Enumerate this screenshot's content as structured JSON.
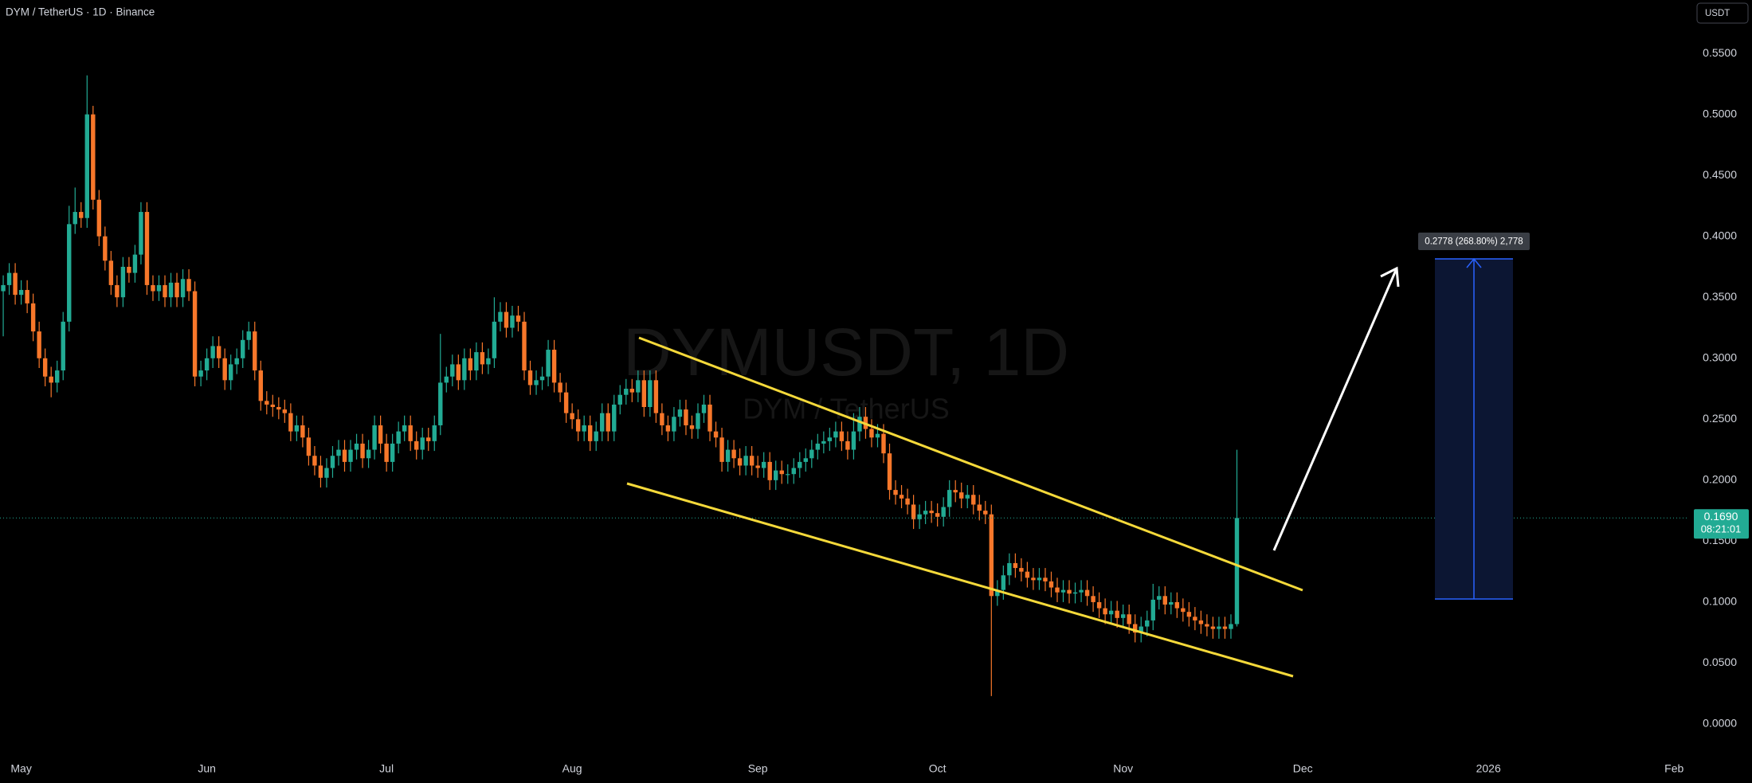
{
  "chart_data": {
    "type": "candlestick",
    "title": "DYM / TetherUS · 1D · Binance",
    "watermark": "DYMUSDT, 1D",
    "watermark_subtitle": "DYM / TetherUS",
    "currency": "USDT",
    "up_color": "#22ab94",
    "down_color": "#f7772a",
    "grid": false,
    "open": [
      0.355,
      0.36,
      0.37,
      0.352,
      0.356,
      0.345,
      0.322,
      0.3,
      0.285,
      0.28,
      0.29,
      0.33,
      0.41,
      0.42,
      0.415,
      0.5,
      0.43,
      0.4,
      0.38,
      0.36,
      0.35,
      0.375,
      0.37,
      0.385,
      0.42,
      0.36,
      0.355,
      0.36,
      0.35,
      0.362,
      0.35,
      0.365,
      0.355,
      0.285,
      0.29,
      0.3,
      0.31,
      0.3,
      0.282,
      0.295,
      0.3,
      0.315,
      0.322,
      0.29,
      0.265,
      0.262,
      0.26,
      0.258,
      0.255,
      0.24,
      0.245,
      0.235,
      0.22,
      0.212,
      0.202,
      0.21,
      0.22,
      0.225,
      0.215,
      0.225,
      0.23,
      0.218,
      0.225,
      0.245,
      0.23,
      0.215,
      0.23,
      0.24,
      0.245,
      0.232,
      0.225,
      0.235,
      0.232,
      0.245,
      0.28,
      0.285,
      0.295,
      0.282,
      0.3,
      0.29,
      0.305,
      0.295,
      0.3,
      0.33,
      0.338,
      0.325,
      0.335,
      0.33,
      0.29,
      0.278,
      0.282,
      0.285,
      0.307,
      0.28,
      0.272,
      0.255,
      0.25,
      0.24,
      0.245,
      0.232,
      0.24,
      0.255,
      0.24,
      0.262,
      0.27,
      0.275,
      0.272,
      0.282,
      0.26,
      0.282,
      0.255,
      0.245,
      0.24,
      0.252,
      0.258,
      0.245,
      0.242,
      0.255,
      0.262,
      0.24,
      0.235,
      0.215,
      0.225,
      0.218,
      0.212,
      0.22,
      0.212,
      0.21,
      0.215,
      0.2,
      0.208,
      0.205,
      0.205,
      0.21,
      0.215,
      0.218,
      0.225,
      0.23,
      0.232,
      0.235,
      0.24,
      0.232,
      0.225,
      0.24,
      0.252,
      0.242,
      0.235,
      0.238,
      0.222,
      0.192,
      0.188,
      0.185,
      0.18,
      0.168,
      0.172,
      0.175,
      0.173,
      0.17,
      0.178,
      0.192,
      0.19,
      0.185,
      0.188,
      0.18,
      0.175,
      0.172,
      0.105,
      0.11,
      0.122,
      0.132,
      0.128,
      0.125,
      0.12,
      0.118,
      0.12,
      0.117,
      0.112,
      0.108,
      0.11,
      0.107,
      0.108,
      0.11,
      0.105,
      0.1,
      0.095,
      0.09,
      0.093,
      0.087,
      0.09,
      0.082,
      0.075,
      0.08,
      0.085,
      0.102,
      0.105,
      0.098,
      0.1,
      0.095,
      0.092,
      0.088,
      0.085,
      0.082,
      0.08,
      0.078,
      0.08,
      0.078,
      0.082
    ],
    "high": [
      0.368,
      0.378,
      0.378,
      0.364,
      0.364,
      0.353,
      0.33,
      0.308,
      0.293,
      0.298,
      0.338,
      0.425,
      0.44,
      0.428,
      0.532,
      0.507,
      0.438,
      0.408,
      0.388,
      0.368,
      0.383,
      0.383,
      0.393,
      0.428,
      0.428,
      0.368,
      0.368,
      0.368,
      0.37,
      0.37,
      0.373,
      0.373,
      0.363,
      0.298,
      0.308,
      0.318,
      0.318,
      0.308,
      0.303,
      0.308,
      0.323,
      0.33,
      0.33,
      0.298,
      0.273,
      0.27,
      0.268,
      0.266,
      0.263,
      0.253,
      0.253,
      0.243,
      0.228,
      0.22,
      0.218,
      0.228,
      0.233,
      0.233,
      0.233,
      0.238,
      0.238,
      0.233,
      0.253,
      0.253,
      0.238,
      0.238,
      0.248,
      0.253,
      0.253,
      0.24,
      0.243,
      0.243,
      0.253,
      0.32,
      0.293,
      0.303,
      0.303,
      0.308,
      0.308,
      0.313,
      0.313,
      0.308,
      0.35,
      0.346,
      0.346,
      0.343,
      0.343,
      0.338,
      0.298,
      0.29,
      0.293,
      0.315,
      0.315,
      0.288,
      0.28,
      0.263,
      0.258,
      0.253,
      0.253,
      0.248,
      0.263,
      0.263,
      0.27,
      0.278,
      0.283,
      0.283,
      0.29,
      0.29,
      0.29,
      0.29,
      0.263,
      0.253,
      0.26,
      0.266,
      0.266,
      0.253,
      0.263,
      0.27,
      0.27,
      0.248,
      0.243,
      0.233,
      0.233,
      0.226,
      0.228,
      0.228,
      0.22,
      0.223,
      0.223,
      0.216,
      0.216,
      0.213,
      0.218,
      0.223,
      0.226,
      0.233,
      0.238,
      0.24,
      0.243,
      0.248,
      0.248,
      0.24,
      0.255,
      0.26,
      0.26,
      0.25,
      0.246,
      0.246,
      0.23,
      0.2,
      0.196,
      0.193,
      0.188,
      0.18,
      0.183,
      0.183,
      0.181,
      0.186,
      0.2,
      0.2,
      0.198,
      0.196,
      0.196,
      0.188,
      0.183,
      0.18,
      0.118,
      0.13,
      0.14,
      0.14,
      0.136,
      0.133,
      0.128,
      0.128,
      0.128,
      0.125,
      0.12,
      0.118,
      0.118,
      0.116,
      0.118,
      0.118,
      0.113,
      0.108,
      0.103,
      0.101,
      0.101,
      0.098,
      0.098,
      0.09,
      0.088,
      0.093,
      0.115,
      0.113,
      0.113,
      0.108,
      0.108,
      0.103,
      0.1,
      0.096,
      0.093,
      0.09,
      0.088,
      0.088,
      0.088,
      0.09,
      0.225
    ],
    "low": [
      0.318,
      0.352,
      0.344,
      0.344,
      0.337,
      0.314,
      0.292,
      0.277,
      0.268,
      0.272,
      0.282,
      0.322,
      0.402,
      0.407,
      0.407,
      0.422,
      0.392,
      0.372,
      0.352,
      0.342,
      0.342,
      0.362,
      0.362,
      0.377,
      0.352,
      0.347,
      0.347,
      0.342,
      0.342,
      0.342,
      0.342,
      0.347,
      0.277,
      0.277,
      0.282,
      0.292,
      0.292,
      0.274,
      0.274,
      0.287,
      0.292,
      0.307,
      0.282,
      0.257,
      0.254,
      0.252,
      0.25,
      0.247,
      0.232,
      0.232,
      0.227,
      0.212,
      0.204,
      0.194,
      0.194,
      0.202,
      0.212,
      0.207,
      0.207,
      0.217,
      0.21,
      0.21,
      0.217,
      0.222,
      0.207,
      0.207,
      0.222,
      0.232,
      0.224,
      0.217,
      0.217,
      0.224,
      0.224,
      0.237,
      0.272,
      0.277,
      0.274,
      0.274,
      0.282,
      0.282,
      0.287,
      0.287,
      0.292,
      0.322,
      0.317,
      0.317,
      0.322,
      0.282,
      0.27,
      0.27,
      0.274,
      0.277,
      0.272,
      0.264,
      0.247,
      0.242,
      0.232,
      0.232,
      0.224,
      0.224,
      0.232,
      0.232,
      0.232,
      0.254,
      0.262,
      0.264,
      0.264,
      0.252,
      0.252,
      0.247,
      0.237,
      0.232,
      0.232,
      0.244,
      0.237,
      0.234,
      0.234,
      0.247,
      0.232,
      0.227,
      0.207,
      0.207,
      0.21,
      0.204,
      0.204,
      0.204,
      0.202,
      0.202,
      0.192,
      0.192,
      0.197,
      0.197,
      0.197,
      0.202,
      0.207,
      0.21,
      0.217,
      0.222,
      0.224,
      0.227,
      0.224,
      0.217,
      0.217,
      0.232,
      0.234,
      0.227,
      0.227,
      0.214,
      0.184,
      0.18,
      0.177,
      0.172,
      0.16,
      0.16,
      0.164,
      0.165,
      0.162,
      0.162,
      0.17,
      0.182,
      0.177,
      0.177,
      0.172,
      0.167,
      0.164,
      0.023,
      0.097,
      0.102,
      0.114,
      0.12,
      0.117,
      0.112,
      0.11,
      0.11,
      0.109,
      0.104,
      0.1,
      0.1,
      0.099,
      0.099,
      0.1,
      0.097,
      0.092,
      0.087,
      0.082,
      0.082,
      0.079,
      0.079,
      0.074,
      0.067,
      0.067,
      0.072,
      0.077,
      0.094,
      0.09,
      0.09,
      0.087,
      0.084,
      0.08,
      0.077,
      0.074,
      0.072,
      0.07,
      0.07,
      0.07,
      0.07,
      0.08
    ],
    "close": [
      0.36,
      0.37,
      0.352,
      0.356,
      0.345,
      0.322,
      0.3,
      0.285,
      0.28,
      0.29,
      0.33,
      0.41,
      0.42,
      0.415,
      0.5,
      0.43,
      0.4,
      0.38,
      0.36,
      0.35,
      0.375,
      0.37,
      0.385,
      0.42,
      0.36,
      0.355,
      0.36,
      0.35,
      0.362,
      0.35,
      0.365,
      0.355,
      0.285,
      0.29,
      0.3,
      0.31,
      0.3,
      0.282,
      0.295,
      0.3,
      0.315,
      0.322,
      0.29,
      0.265,
      0.262,
      0.26,
      0.258,
      0.255,
      0.24,
      0.245,
      0.235,
      0.22,
      0.212,
      0.202,
      0.21,
      0.22,
      0.225,
      0.215,
      0.225,
      0.23,
      0.218,
      0.225,
      0.245,
      0.23,
      0.215,
      0.23,
      0.24,
      0.245,
      0.232,
      0.225,
      0.235,
      0.232,
      0.245,
      0.28,
      0.285,
      0.295,
      0.282,
      0.3,
      0.29,
      0.305,
      0.295,
      0.3,
      0.33,
      0.338,
      0.325,
      0.335,
      0.33,
      0.29,
      0.278,
      0.282,
      0.285,
      0.307,
      0.28,
      0.272,
      0.255,
      0.25,
      0.24,
      0.245,
      0.232,
      0.24,
      0.255,
      0.24,
      0.262,
      0.27,
      0.275,
      0.272,
      0.282,
      0.26,
      0.282,
      0.255,
      0.245,
      0.24,
      0.252,
      0.258,
      0.245,
      0.242,
      0.255,
      0.262,
      0.24,
      0.235,
      0.215,
      0.225,
      0.218,
      0.212,
      0.22,
      0.212,
      0.21,
      0.215,
      0.2,
      0.208,
      0.205,
      0.205,
      0.21,
      0.215,
      0.218,
      0.225,
      0.23,
      0.232,
      0.235,
      0.24,
      0.232,
      0.225,
      0.24,
      0.252,
      0.242,
      0.235,
      0.238,
      0.222,
      0.192,
      0.188,
      0.185,
      0.18,
      0.168,
      0.172,
      0.175,
      0.173,
      0.17,
      0.178,
      0.192,
      0.19,
      0.185,
      0.188,
      0.18,
      0.175,
      0.172,
      0.105,
      0.11,
      0.122,
      0.132,
      0.128,
      0.125,
      0.12,
      0.118,
      0.12,
      0.117,
      0.112,
      0.108,
      0.11,
      0.107,
      0.108,
      0.11,
      0.105,
      0.1,
      0.095,
      0.09,
      0.093,
      0.087,
      0.09,
      0.082,
      0.075,
      0.08,
      0.085,
      0.102,
      0.105,
      0.098,
      0.1,
      0.095,
      0.092,
      0.088,
      0.085,
      0.082,
      0.08,
      0.078,
      0.08,
      0.078,
      0.082,
      0.169
    ],
    "xlim": [
      -0.54,
      281.5
    ],
    "xticks": [
      {
        "value": 3,
        "label": "May"
      },
      {
        "value": 34,
        "label": "Jun"
      },
      {
        "value": 64,
        "label": "Jul"
      },
      {
        "value": 95,
        "label": "Aug"
      },
      {
        "value": 126,
        "label": "Sep"
      },
      {
        "value": 156,
        "label": "Oct"
      },
      {
        "value": 187,
        "label": "Nov"
      },
      {
        "value": 217,
        "label": "Dec"
      },
      {
        "value": 248,
        "label": "2026"
      },
      {
        "value": 279,
        "label": "Feb"
      }
    ],
    "ylim": [
      -0.0235,
      0.5938
    ],
    "yticks": [
      {
        "value": 0,
        "label": "0.0000"
      },
      {
        "value": 0.05,
        "label": "0.0500"
      },
      {
        "value": 0.1,
        "label": "0.1000"
      },
      {
        "value": 0.15,
        "label": "0.1500"
      },
      {
        "value": 0.2,
        "label": "0.2000"
      },
      {
        "value": 0.25,
        "label": "0.2500"
      },
      {
        "value": 0.3,
        "label": "0.3000"
      },
      {
        "value": 0.35,
        "label": "0.3500"
      },
      {
        "value": 0.4,
        "label": "0.4000"
      },
      {
        "value": 0.45,
        "label": "0.4500"
      },
      {
        "value": 0.5,
        "label": "0.5000"
      },
      {
        "value": 0.55,
        "label": "0.5500"
      }
    ],
    "last_price": {
      "value": 0.169,
      "label": "0.1690"
    },
    "countdown": "08:21:01",
    "measure_label": "0.2778 (268.80%) 2,778"
  }
}
